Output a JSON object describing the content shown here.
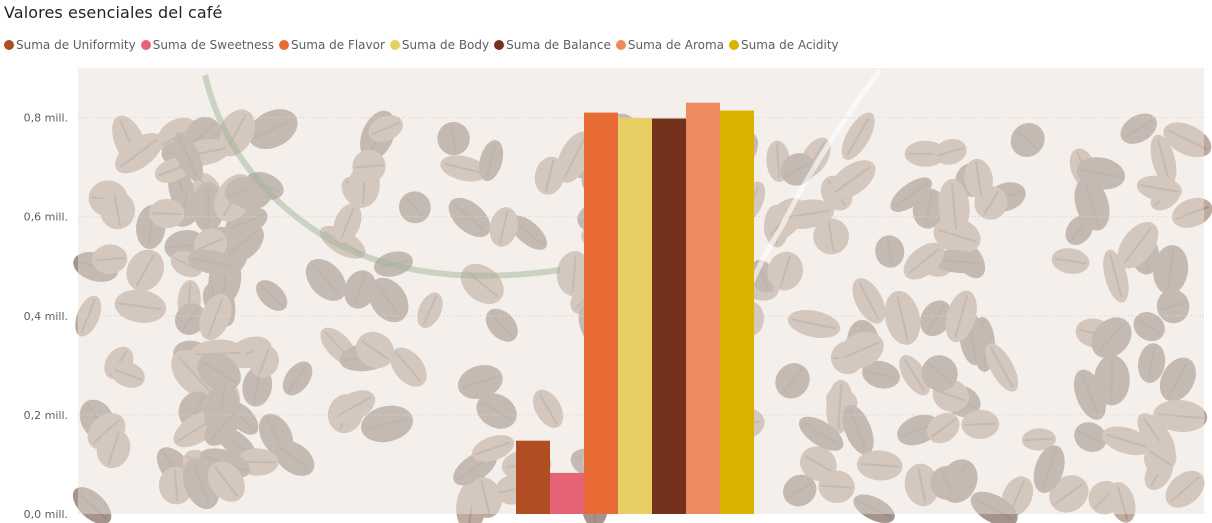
{
  "chart_title": "Valores esenciales del café",
  "colors": {
    "background_tint": "#ece4dc",
    "bean_dark": "#5a3c2c",
    "bean_mid": "#8a6650",
    "gridline": "#d9d2cc"
  },
  "chart_data": {
    "type": "bar",
    "title": "Valores esenciales del café",
    "xlabel": "",
    "ylabel": "",
    "ylim": [
      0,
      0.9
    ],
    "y_unit_suffix": " mill.",
    "yticks": [
      "0,0 mill.",
      "0,2 mill.",
      "0,4 mill.",
      "0,6 mill.",
      "0,8 mill."
    ],
    "ytick_values": [
      0,
      0.2,
      0.4,
      0.6,
      0.8
    ],
    "grid": true,
    "legend_position": "top-left",
    "categories": [
      ""
    ],
    "series": [
      {
        "name": "Suma de Uniformity",
        "values": [
          0.148
        ],
        "color": "#b04d22"
      },
      {
        "name": "Suma de Sweetness",
        "values": [
          0.083
        ],
        "color": "#e46475"
      },
      {
        "name": "Suma de Flavor",
        "values": [
          0.81
        ],
        "color": "#e86a34"
      },
      {
        "name": "Suma de Body",
        "values": [
          0.799
        ],
        "color": "#e8cf64"
      },
      {
        "name": "Suma de Balance",
        "values": [
          0.798
        ],
        "color": "#74321c"
      },
      {
        "name": "Suma de Aroma",
        "values": [
          0.83
        ],
        "color": "#ef8960"
      },
      {
        "name": "Suma de Acidity",
        "values": [
          0.814
        ],
        "color": "#d9b300"
      }
    ]
  }
}
